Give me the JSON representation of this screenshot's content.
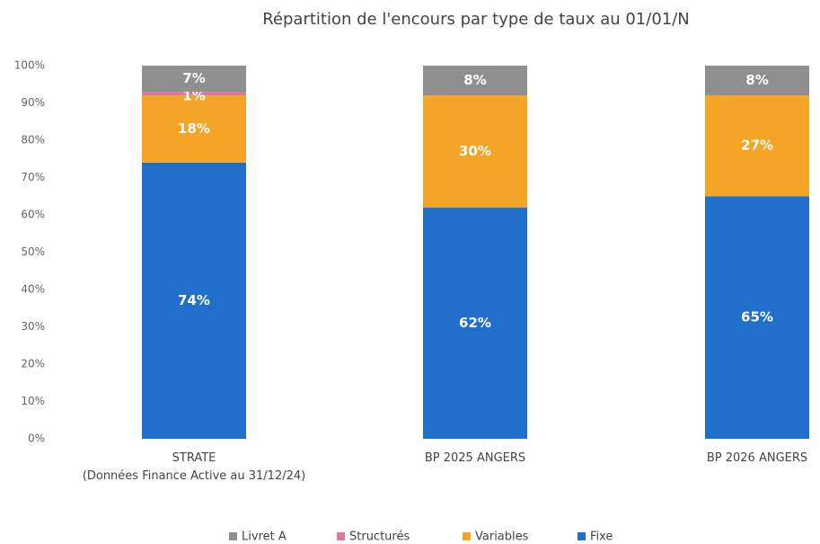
{
  "chart_data": {
    "type": "stacked_bar",
    "title": "Répartition de l'encours par type de taux au 01/01/N",
    "categories": [
      "STRATE\n(Données Finance Active au 31/12/24)",
      "BP 2025 ANGERS",
      "BP 2026 ANGERS"
    ],
    "series": [
      {
        "name": "Livret A",
        "color": "#8f8f8f",
        "values": [
          7,
          8,
          8
        ],
        "value_labels": [
          "7%",
          "8%",
          "8%"
        ]
      },
      {
        "name": "Structurés",
        "color": "#d9799f",
        "values": [
          1,
          0,
          0
        ],
        "value_labels": [
          "1%",
          null,
          null
        ]
      },
      {
        "name": "Variables",
        "color": "#f4a526",
        "values": [
          18,
          30,
          27
        ],
        "value_labels": [
          "18%",
          "30%",
          "27%"
        ]
      },
      {
        "name": "Fixe",
        "color": "#1f6fcb",
        "values": [
          74,
          62,
          65
        ],
        "value_labels": [
          "74%",
          "62%",
          "65%"
        ]
      }
    ],
    "ylim": [
      0,
      100
    ],
    "yticks": [
      {
        "value": 0,
        "label": "0%"
      },
      {
        "value": 10,
        "label": "10%"
      },
      {
        "value": 20,
        "label": "20%"
      },
      {
        "value": 30,
        "label": "30%"
      },
      {
        "value": 40,
        "label": "40%"
      },
      {
        "value": 50,
        "label": "50%"
      },
      {
        "value": 60,
        "label": "60%"
      },
      {
        "value": 70,
        "label": "70%"
      },
      {
        "value": 80,
        "label": "80%"
      },
      {
        "value": 90,
        "label": "90%"
      },
      {
        "value": 100,
        "label": "100%"
      }
    ],
    "grid": false,
    "legend": "bottom"
  }
}
